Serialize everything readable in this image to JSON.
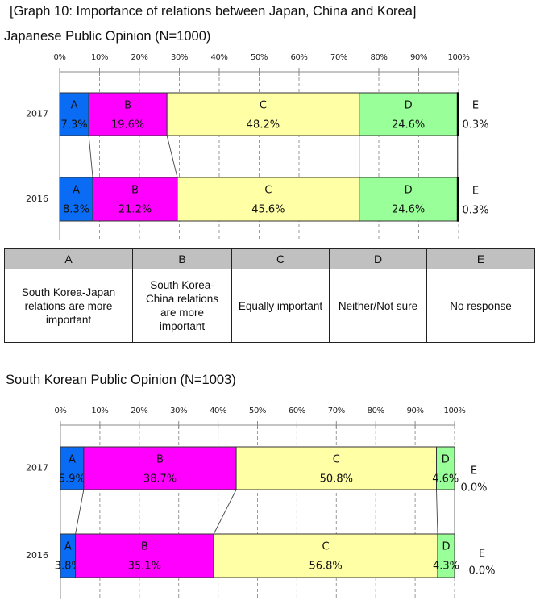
{
  "title": "[Graph 10: Importance of relations between Japan, China and Korea]",
  "legend_table": {
    "headers": [
      "A",
      "B",
      "C",
      "D",
      "E"
    ],
    "descriptions": [
      "South Korea-Japan relations are more important",
      "South Korea-China relations are more important",
      "Equally important",
      "Neither/Not sure",
      "No response"
    ]
  },
  "chart_data": [
    {
      "type": "bar",
      "orientation": "horizontal",
      "stacked": true,
      "title": "Japanese Public Opinion (N=1000)",
      "xlabel": "",
      "ylabel": "",
      "xlim": [
        0,
        100
      ],
      "x_ticks": [
        "0%",
        "10%",
        "20%",
        "30%",
        "40%",
        "50%",
        "60%",
        "70%",
        "80%",
        "90%",
        "100%"
      ],
      "grid": true,
      "categories": [
        "2017",
        "2016"
      ],
      "series": [
        {
          "name": "A",
          "color": "#0a6cf5",
          "values": [
            7.3,
            8.3
          ],
          "labels": [
            "7.3%",
            "8.3%"
          ]
        },
        {
          "name": "B",
          "color": "#ff00ff",
          "values": [
            19.6,
            21.2
          ],
          "labels": [
            "19.6%",
            "21.2%"
          ]
        },
        {
          "name": "C",
          "color": "#ffffa6",
          "values": [
            48.2,
            45.6
          ],
          "labels": [
            "48.2%",
            "45.6%"
          ]
        },
        {
          "name": "D",
          "color": "#99ff99",
          "values": [
            24.6,
            24.6
          ],
          "labels": [
            "24.6%",
            "24.6%"
          ]
        },
        {
          "name": "E",
          "color": "#000000",
          "values": [
            0.3,
            0.3
          ],
          "labels": [
            "0.3%",
            "0.3%"
          ]
        }
      ]
    },
    {
      "type": "bar",
      "orientation": "horizontal",
      "stacked": true,
      "title": "South Korean Public Opinion (N=1003)",
      "xlabel": "",
      "ylabel": "",
      "xlim": [
        0,
        100
      ],
      "x_ticks": [
        "0%",
        "10%",
        "20%",
        "30%",
        "40%",
        "50%",
        "60%",
        "70%",
        "80%",
        "90%",
        "100%"
      ],
      "grid": true,
      "categories": [
        "2017",
        "2016"
      ],
      "series": [
        {
          "name": "A",
          "color": "#0a6cf5",
          "values": [
            5.9,
            3.8
          ],
          "labels": [
            "5.9%",
            "3.8%"
          ]
        },
        {
          "name": "B",
          "color": "#ff00ff",
          "values": [
            38.7,
            35.1
          ],
          "labels": [
            "38.7%",
            "35.1%"
          ]
        },
        {
          "name": "C",
          "color": "#ffffa6",
          "values": [
            50.8,
            56.8
          ],
          "labels": [
            "50.8%",
            "56.8%"
          ]
        },
        {
          "name": "D",
          "color": "#99ff99",
          "values": [
            4.6,
            4.3
          ],
          "labels": [
            "4.6%",
            "4.3%"
          ]
        },
        {
          "name": "E",
          "color": "#000000",
          "values": [
            0.0,
            0.0
          ],
          "labels": [
            "0.0%",
            "0.0%"
          ]
        }
      ]
    }
  ]
}
